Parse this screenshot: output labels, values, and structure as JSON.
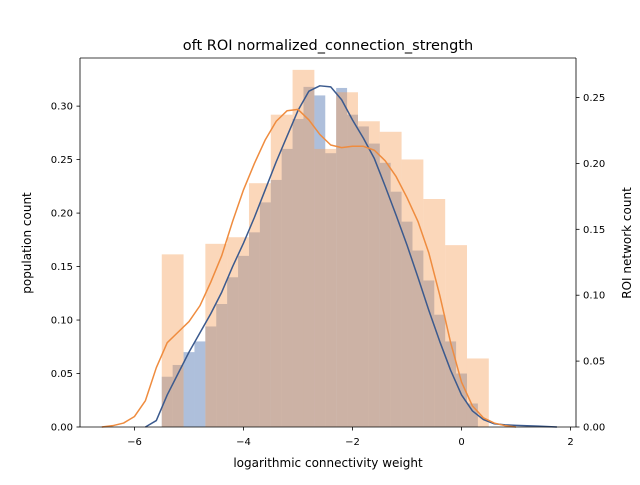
{
  "chart_data": {
    "type": "bar",
    "title": "oft ROI normalized_connection_strength",
    "xlabel": "logarithmic connectivity weight",
    "ylabel": "population count",
    "y2label": "ROI network count",
    "xlim": [
      -7.0,
      2.1
    ],
    "ylim": [
      0,
      0.345
    ],
    "y2lim": [
      0,
      0.28
    ],
    "xticks": [
      -6,
      -4,
      -2,
      0,
      2
    ],
    "xtick_labels": [
      "−6",
      "−4",
      "−2",
      "0",
      "2"
    ],
    "yticks": [
      0.0,
      0.05,
      0.1,
      0.15,
      0.2,
      0.25,
      0.3
    ],
    "ytick_labels": [
      "0.00",
      "0.05",
      "0.10",
      "0.15",
      "0.20",
      "0.25",
      "0.30"
    ],
    "y2ticks": [
      0.0,
      0.05,
      0.1,
      0.15,
      0.2,
      0.25
    ],
    "y2tick_labels": [
      "0.00",
      "0.05",
      "0.10",
      "0.15",
      "0.20",
      "0.25"
    ],
    "grid": false,
    "colors": {
      "series1_fill": "#4c72b0",
      "series1_line": "#3b5a8e",
      "series2_fill": "#f5a05b",
      "series2_line": "#ef8c3f"
    },
    "series": [
      {
        "axis": "left",
        "bin_width": 0.2,
        "bins": [
          [
            -5.5,
            0.047
          ],
          [
            -5.3,
            0.058
          ],
          [
            -5.1,
            0.07
          ],
          [
            -4.9,
            0.08
          ],
          [
            -4.7,
            0.094
          ],
          [
            -4.5,
            0.115
          ],
          [
            -4.3,
            0.14
          ],
          [
            -4.1,
            0.16
          ],
          [
            -3.9,
            0.182
          ],
          [
            -3.7,
            0.21
          ],
          [
            -3.5,
            0.231
          ],
          [
            -3.3,
            0.26
          ],
          [
            -3.1,
            0.288
          ],
          [
            -2.9,
            0.318
          ],
          [
            -2.7,
            0.31
          ],
          [
            -2.5,
            0.256
          ],
          [
            -2.3,
            0.317
          ],
          [
            -2.1,
            0.292
          ],
          [
            -1.9,
            0.281
          ],
          [
            -1.7,
            0.265
          ],
          [
            -1.5,
            0.247
          ],
          [
            -1.3,
            0.22
          ],
          [
            -1.1,
            0.192
          ],
          [
            -0.9,
            0.165
          ],
          [
            -0.7,
            0.137
          ],
          [
            -0.5,
            0.105
          ],
          [
            -0.3,
            0.08
          ],
          [
            -0.1,
            0.05
          ],
          [
            0.1,
            0.022
          ]
        ],
        "kde": [
          [
            -5.8,
            0.0
          ],
          [
            -5.6,
            0.006
          ],
          [
            -5.4,
            0.03
          ],
          [
            -5.2,
            0.05
          ],
          [
            -5.0,
            0.07
          ],
          [
            -4.8,
            0.088
          ],
          [
            -4.6,
            0.106
          ],
          [
            -4.4,
            0.126
          ],
          [
            -4.2,
            0.15
          ],
          [
            -4.0,
            0.172
          ],
          [
            -3.8,
            0.196
          ],
          [
            -3.6,
            0.222
          ],
          [
            -3.4,
            0.248
          ],
          [
            -3.2,
            0.272
          ],
          [
            -3.0,
            0.296
          ],
          [
            -2.8,
            0.314
          ],
          [
            -2.6,
            0.319
          ],
          [
            -2.4,
            0.318
          ],
          [
            -2.2,
            0.306
          ],
          [
            -2.0,
            0.287
          ],
          [
            -1.8,
            0.27
          ],
          [
            -1.6,
            0.251
          ],
          [
            -1.4,
            0.225
          ],
          [
            -1.2,
            0.198
          ],
          [
            -1.0,
            0.17
          ],
          [
            -0.8,
            0.14
          ],
          [
            -0.6,
            0.109
          ],
          [
            -0.4,
            0.08
          ],
          [
            -0.2,
            0.053
          ],
          [
            0.0,
            0.03
          ],
          [
            0.2,
            0.015
          ],
          [
            0.4,
            0.007
          ],
          [
            0.6,
            0.003
          ],
          [
            0.8,
            0.002
          ],
          [
            1.0,
            0.0015
          ],
          [
            1.4,
            0.0008
          ],
          [
            1.75,
            0.0
          ]
        ]
      },
      {
        "axis": "right",
        "bin_width": 0.4,
        "bins": [
          [
            -5.5,
            0.131
          ],
          [
            -5.1,
            0.0
          ],
          [
            -4.7,
            0.139
          ],
          [
            -4.3,
            0.144
          ],
          [
            -3.9,
            0.185
          ],
          [
            -3.5,
            0.237
          ],
          [
            -3.1,
            0.271
          ],
          [
            -2.7,
            0.211
          ],
          [
            -2.3,
            0.254
          ],
          [
            -1.9,
            0.232
          ],
          [
            -1.5,
            0.224
          ],
          [
            -1.1,
            0.203
          ],
          [
            -0.7,
            0.173
          ],
          [
            -0.3,
            0.138
          ],
          [
            0.1,
            0.052
          ]
        ],
        "kde": [
          [
            -6.6,
            0.0
          ],
          [
            -6.4,
            0.001
          ],
          [
            -6.2,
            0.003
          ],
          [
            -6.0,
            0.008
          ],
          [
            -5.8,
            0.02
          ],
          [
            -5.6,
            0.045
          ],
          [
            -5.4,
            0.064
          ],
          [
            -5.2,
            0.072
          ],
          [
            -5.0,
            0.08
          ],
          [
            -4.8,
            0.092
          ],
          [
            -4.6,
            0.11
          ],
          [
            -4.4,
            0.13
          ],
          [
            -4.2,
            0.156
          ],
          [
            -4.0,
            0.18
          ],
          [
            -3.8,
            0.2
          ],
          [
            -3.6,
            0.218
          ],
          [
            -3.4,
            0.232
          ],
          [
            -3.2,
            0.24
          ],
          [
            -3.0,
            0.241
          ],
          [
            -2.8,
            0.233
          ],
          [
            -2.6,
            0.222
          ],
          [
            -2.4,
            0.214
          ],
          [
            -2.2,
            0.212
          ],
          [
            -2.0,
            0.213
          ],
          [
            -1.8,
            0.213
          ],
          [
            -1.6,
            0.21
          ],
          [
            -1.4,
            0.202
          ],
          [
            -1.2,
            0.19
          ],
          [
            -1.0,
            0.174
          ],
          [
            -0.8,
            0.156
          ],
          [
            -0.6,
            0.132
          ],
          [
            -0.4,
            0.1
          ],
          [
            -0.2,
            0.064
          ],
          [
            0.0,
            0.034
          ],
          [
            0.2,
            0.016
          ],
          [
            0.4,
            0.007
          ],
          [
            0.6,
            0.003
          ],
          [
            0.8,
            0.001
          ],
          [
            1.0,
            0.0
          ]
        ]
      }
    ]
  }
}
